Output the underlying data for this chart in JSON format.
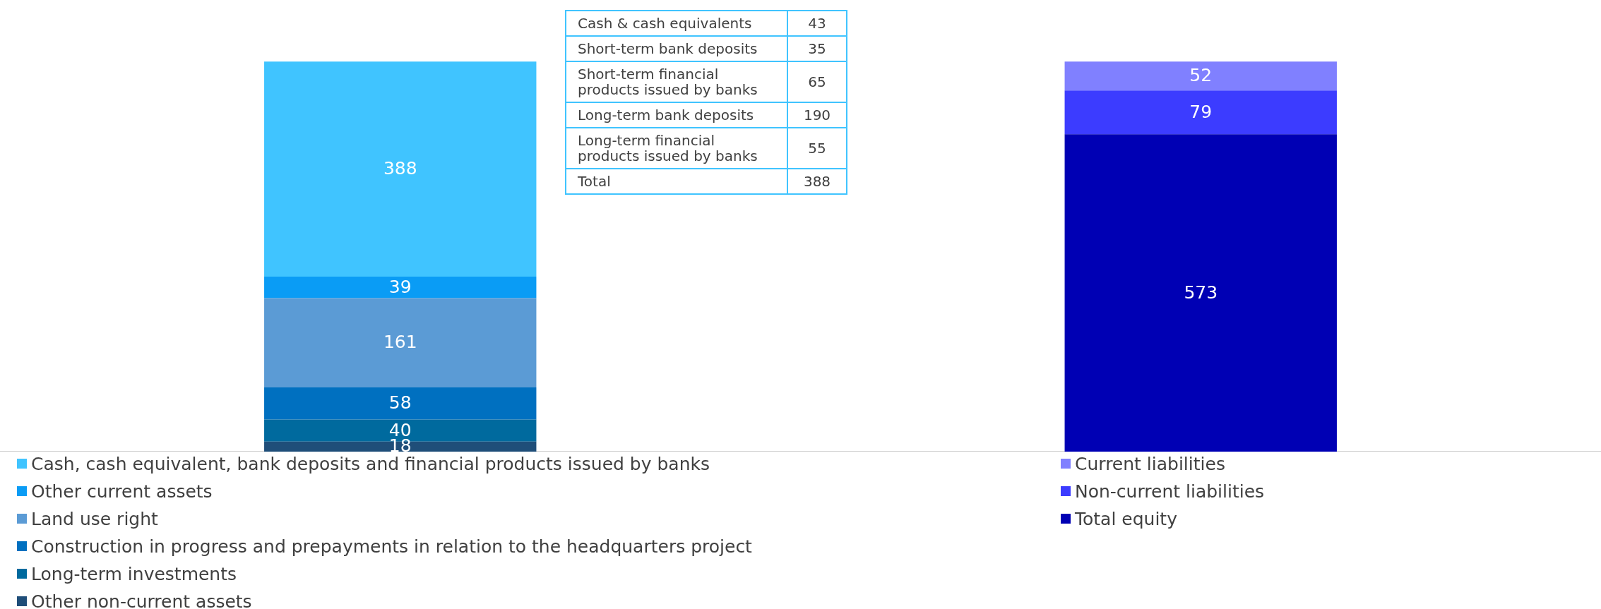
{
  "chart_data": {
    "type": "bar",
    "stacked": true,
    "categories": [
      null,
      null
    ],
    "data_labels": true,
    "grid": false,
    "legend": "bottom",
    "tick_labels": false,
    "series": [
      {
        "name": "Other non-current assets",
        "color": "#1f4e79",
        "values": [
          18,
          null
        ]
      },
      {
        "name": "Long-term investments",
        "color": "#006a9e",
        "values": [
          40,
          null
        ]
      },
      {
        "name": "Construction in progress and prepayments in relation to the headquarters project",
        "color": "#0070c0",
        "values": [
          58,
          null
        ]
      },
      {
        "name": "Land use right",
        "color": "#5b9bd5",
        "values": [
          161,
          null
        ]
      },
      {
        "name": "Other current assets",
        "color": "#0a9cf5",
        "values": [
          39,
          null
        ]
      },
      {
        "name": "Cash, cash equivalent, bank deposits and financial products issued by banks",
        "color": "#40c4ff",
        "values": [
          388,
          null
        ]
      },
      {
        "name": "Total equity",
        "color": "#0000b4",
        "values": [
          null,
          573
        ]
      },
      {
        "name": "Non-current liabilities",
        "color": "#3c3cff",
        "values": [
          null,
          79
        ]
      },
      {
        "name": "Current liabilities",
        "color": "#8080ff",
        "values": [
          null,
          52
        ]
      }
    ],
    "annotations": [
      "Cash & cash equivalents",
      "43",
      "Short-term bank deposits",
      "35",
      "Short-term financial products issued by banks",
      "65",
      "Long-term bank deposits",
      "190",
      "Long-term financial products issued by banks",
      "55",
      "Total",
      "388"
    ]
  }
}
